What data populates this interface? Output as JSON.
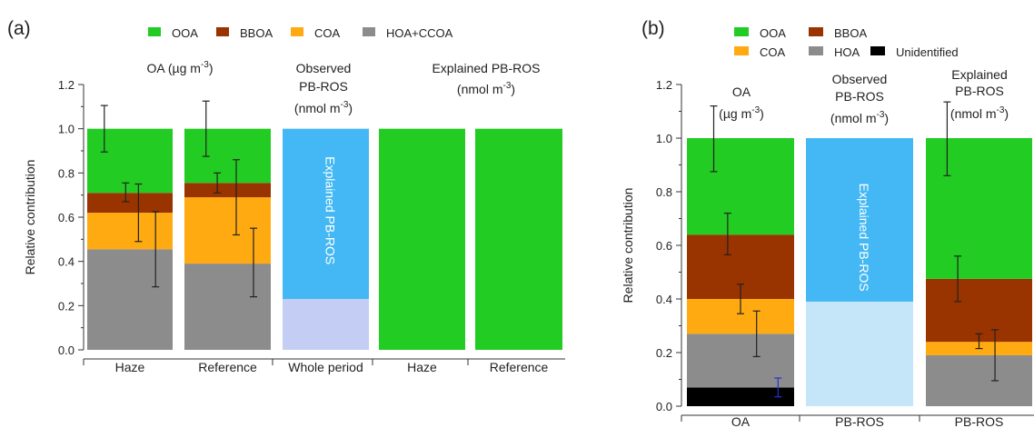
{
  "chart_data": [
    {
      "panel_label": "(a)",
      "type": "bar",
      "stacked": true,
      "ylabel": "Relative contribution",
      "ylim": [
        0,
        1.2
      ],
      "yticks": [
        "0.0",
        "0.2",
        "0.4",
        "0.6",
        "0.8",
        "1.0",
        "1.2"
      ],
      "legend": {
        "placement": "top",
        "items": [
          {
            "name": "OOA",
            "color": "#22cc22"
          },
          {
            "name": "BBOA",
            "color": "#993300"
          },
          {
            "name": "COA",
            "color": "#ffaa11"
          },
          {
            "name": "HOA+CCOA",
            "color": "#8c8c8c"
          }
        ]
      },
      "group_titles": [
        {
          "lines": [
            "OA (µg m⁻³)"
          ]
        },
        {
          "lines": [
            "Observed",
            "PB-ROS",
            "(nmol m⁻³)"
          ]
        },
        {
          "lines": [
            "Explained PB-ROS",
            "(nmol m⁻³)"
          ]
        }
      ],
      "categories": [
        "Haze",
        "Reference",
        "Whole period",
        "Haze",
        "Reference"
      ],
      "bars": [
        {
          "category": "Haze",
          "segments": [
            {
              "name": "HOA+CCOA",
              "value": 0.455,
              "color": "#8c8c8c"
            },
            {
              "name": "COA",
              "value": 0.165,
              "color": "#ffaa11"
            },
            {
              "name": "BBOA",
              "value": 0.09,
              "color": "#993300"
            },
            {
              "name": "OOA",
              "value": 0.29,
              "color": "#22cc22"
            }
          ]
        },
        {
          "category": "Reference",
          "segments": [
            {
              "name": "HOA+CCOA",
              "value": 0.39,
              "color": "#8c8c8c"
            },
            {
              "name": "COA",
              "value": 0.3,
              "color": "#ffaa11"
            },
            {
              "name": "BBOA",
              "value": 0.065,
              "color": "#993300"
            },
            {
              "name": "OOA",
              "value": 0.245,
              "color": "#22cc22"
            }
          ]
        },
        {
          "category": "Whole period",
          "segments": [
            {
              "name": "Unexplained",
              "value": 0.23,
              "color": "#c4cdf4"
            },
            {
              "name": "Explained PB-ROS",
              "value": 0.77,
              "color": "#44b8f4"
            }
          ],
          "label": "Explained PB-ROS"
        },
        {
          "category": "Haze",
          "segments": [
            {
              "name": "OOA",
              "value": 1.0,
              "color": "#22cc22"
            }
          ]
        },
        {
          "category": "Reference",
          "segments": [
            {
              "name": "OOA",
              "value": 1.0,
              "color": "#22cc22"
            }
          ]
        }
      ],
      "error_bars": [
        {
          "bar": 0,
          "offset": 0.2,
          "center": 1.0,
          "low": 0.895,
          "high": 1.105
        },
        {
          "bar": 0,
          "offset": 0.45,
          "center": 0.71,
          "low": 0.67,
          "high": 0.755
        },
        {
          "bar": 0,
          "offset": 0.6,
          "center": 0.62,
          "low": 0.49,
          "high": 0.75
        },
        {
          "bar": 0,
          "offset": 0.8,
          "center": 0.455,
          "low": 0.285,
          "high": 0.625
        },
        {
          "bar": 1,
          "offset": 0.25,
          "center": 1.0,
          "low": 0.875,
          "high": 1.125
        },
        {
          "bar": 1,
          "offset": 0.38,
          "center": 0.755,
          "low": 0.71,
          "high": 0.8
        },
        {
          "bar": 1,
          "offset": 0.6,
          "center": 0.69,
          "low": 0.52,
          "high": 0.86
        },
        {
          "bar": 1,
          "offset": 0.8,
          "center": 0.39,
          "low": 0.24,
          "high": 0.55
        }
      ]
    },
    {
      "panel_label": "(b)",
      "type": "bar",
      "stacked": true,
      "ylabel": "Relative  contribution",
      "ylim": [
        0,
        1.2
      ],
      "yticks": [
        "0.0",
        "0.2",
        "0.4",
        "0.6",
        "0.8",
        "1.0",
        "1.2"
      ],
      "legend": {
        "placement": "top",
        "items": [
          {
            "name": "OOA",
            "color": "#22cc22"
          },
          {
            "name": "BBOA",
            "color": "#993300"
          },
          {
            "name": "COA",
            "color": "#ffaa11"
          },
          {
            "name": "HOA",
            "color": "#8c8c8c"
          },
          {
            "name": "Unidentified",
            "color": "#000000"
          }
        ]
      },
      "group_titles": [
        {
          "lines": [
            "OA",
            "(µg m⁻³)"
          ]
        },
        {
          "lines": [
            "Observed",
            "PB-ROS",
            "(nmol m⁻³)"
          ]
        },
        {
          "lines": [
            "Explained",
            "PB-ROS",
            "(nmol m⁻³)"
          ]
        }
      ],
      "categories": [
        "OA",
        "PB-ROS",
        "PB-ROS"
      ],
      "bars": [
        {
          "category": "OA",
          "segments": [
            {
              "name": "Unidentified",
              "value": 0.07,
              "color": "#000000"
            },
            {
              "name": "HOA",
              "value": 0.2,
              "color": "#8c8c8c"
            },
            {
              "name": "COA",
              "value": 0.13,
              "color": "#ffaa11"
            },
            {
              "name": "BBOA",
              "value": 0.24,
              "color": "#993300"
            },
            {
              "name": "OOA",
              "value": 0.36,
              "color": "#22cc22"
            }
          ]
        },
        {
          "category": "PB-ROS",
          "segments": [
            {
              "name": "Unexplained",
              "value": 0.39,
              "color": "#c4e6f8"
            },
            {
              "name": "Explained PB-ROS",
              "value": 0.61,
              "color": "#44b8f4"
            }
          ],
          "label": "Explained PB-ROS"
        },
        {
          "category": "PB-ROS",
          "segments": [
            {
              "name": "HOA",
              "value": 0.19,
              "color": "#8c8c8c"
            },
            {
              "name": "COA",
              "value": 0.05,
              "color": "#ffaa11"
            },
            {
              "name": "BBOA",
              "value": 0.235,
              "color": "#993300"
            },
            {
              "name": "OOA",
              "value": 0.525,
              "color": "#22cc22"
            }
          ]
        }
      ],
      "error_bars": [
        {
          "bar": 0,
          "offset": 0.25,
          "center": 1.0,
          "low": 0.875,
          "high": 1.12
        },
        {
          "bar": 0,
          "offset": 0.38,
          "center": 0.64,
          "low": 0.565,
          "high": 0.72
        },
        {
          "bar": 0,
          "offset": 0.5,
          "center": 0.4,
          "low": 0.345,
          "high": 0.455
        },
        {
          "bar": 0,
          "offset": 0.65,
          "center": 0.27,
          "low": 0.185,
          "high": 0.355
        },
        {
          "bar": 0,
          "offset": 0.85,
          "center": 0.07,
          "low": 0.035,
          "high": 0.105,
          "color": "#2233cc"
        },
        {
          "bar": 2,
          "offset": 0.2,
          "center": 1.0,
          "low": 0.86,
          "high": 1.135
        },
        {
          "bar": 2,
          "offset": 0.3,
          "center": 0.475,
          "low": 0.39,
          "high": 0.56
        },
        {
          "bar": 2,
          "offset": 0.5,
          "center": 0.24,
          "low": 0.215,
          "high": 0.27
        },
        {
          "bar": 2,
          "offset": 0.65,
          "center": 0.19,
          "low": 0.095,
          "high": 0.285
        }
      ]
    }
  ]
}
